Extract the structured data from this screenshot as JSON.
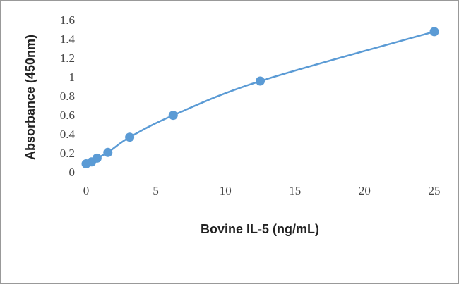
{
  "chart_data": {
    "type": "scatter-line",
    "x_label": "Bovine IL-5 (ng/mL)",
    "y_label": "Absorbance (450nm)",
    "series": [
      {
        "color": "#5b9bd5",
        "x": [
          0,
          0.39,
          0.78,
          1.56,
          3.125,
          6.25,
          12.5,
          25
        ],
        "values": [
          0.1,
          0.12,
          0.16,
          0.22,
          0.38,
          0.61,
          0.97,
          1.49
        ]
      }
    ],
    "xlim": [
      0,
      25
    ],
    "xticks": [
      0,
      5,
      10,
      15,
      20,
      25
    ],
    "ylim": [
      0,
      1.6
    ],
    "yticks": [
      0,
      0.2,
      0.4,
      0.6,
      0.8,
      1,
      1.2,
      1.4,
      1.6
    ],
    "grid": false
  }
}
